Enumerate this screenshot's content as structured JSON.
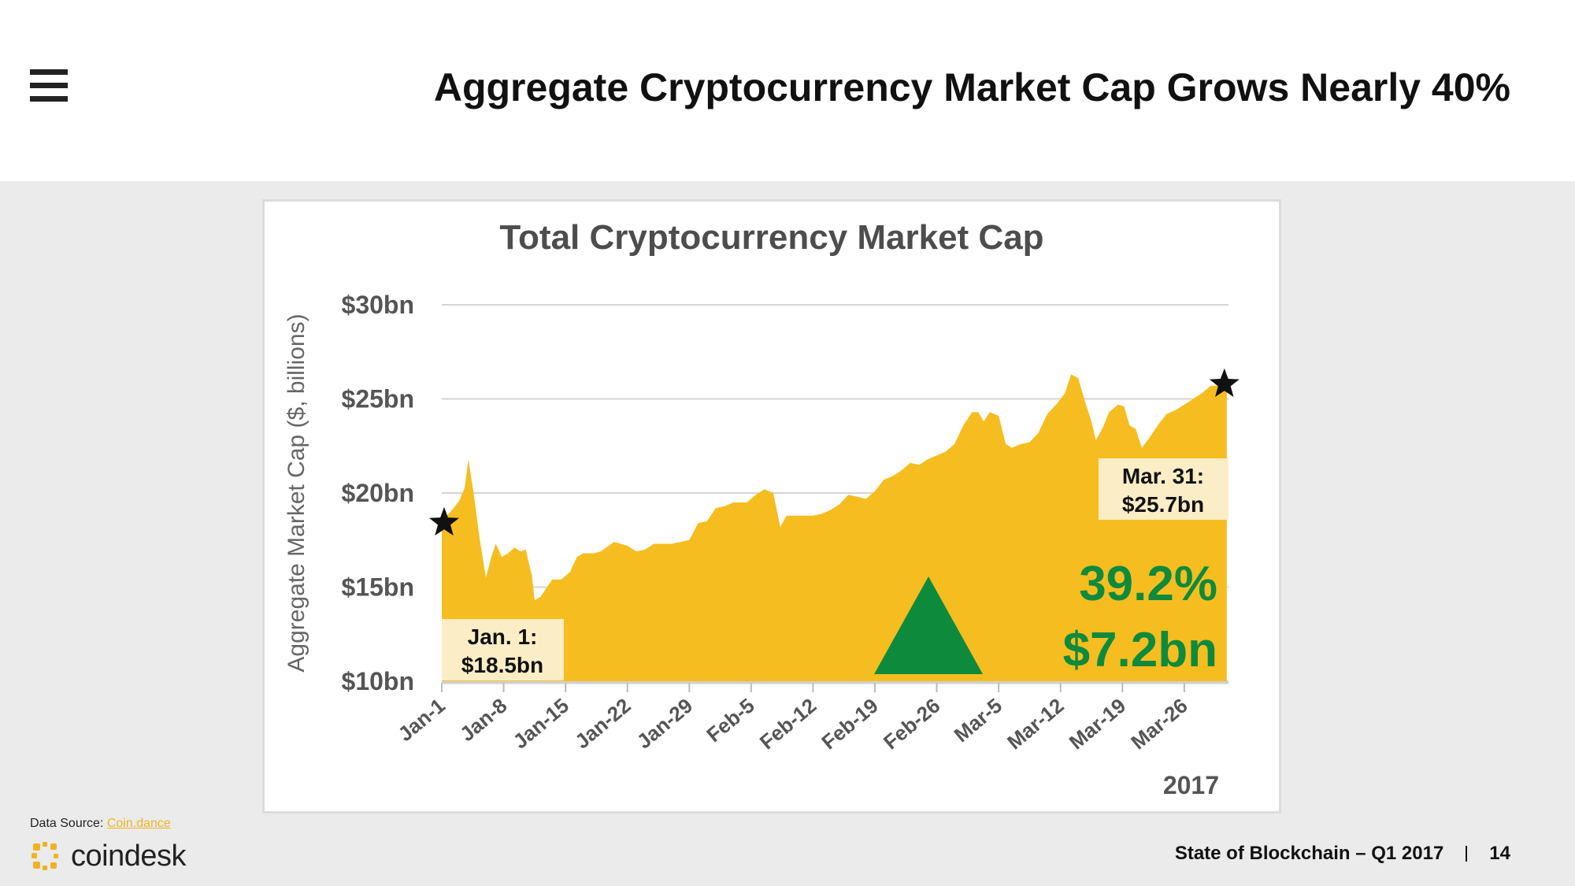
{
  "header": {
    "title": "Aggregate Cryptocurrency Market Cap Grows Nearly 40%"
  },
  "footer": {
    "source_label": "Data Source:",
    "source_link": "Coin.dance",
    "brand": "coindesk",
    "report": "State of Blockchain – Q1 2017",
    "page_number": "14"
  },
  "colors": {
    "area_fill": "#f5bd1f",
    "growth_green": "#0e8a3d",
    "annotation_bg": "#fbedc5",
    "brand_yellow": "#f0b323"
  },
  "icons": {
    "menu": "hamburger-menu-icon",
    "markers": "star-icon",
    "growth": "up-triangle-icon",
    "logo": "coindesk-logo-icon"
  },
  "chart_data": {
    "type": "area",
    "title": "Total Cryptocurrency Market Cap",
    "ylabel": "Aggregate Market Cap ($, billions)",
    "xlabel": "2017",
    "ylim": [
      10,
      30
    ],
    "xlim": [
      0,
      89
    ],
    "grid": true,
    "y_ticks": [
      {
        "value": 10,
        "label": "$10bn"
      },
      {
        "value": 15,
        "label": "$15bn"
      },
      {
        "value": 20,
        "label": "$20bn"
      },
      {
        "value": 25,
        "label": "$25bn"
      },
      {
        "value": 30,
        "label": "$30bn"
      }
    ],
    "x_ticks": [
      {
        "day": 0,
        "label": "Jan-1"
      },
      {
        "day": 7,
        "label": "Jan-8"
      },
      {
        "day": 14,
        "label": "Jan-15"
      },
      {
        "day": 21,
        "label": "Jan-22"
      },
      {
        "day": 28,
        "label": "Jan-29"
      },
      {
        "day": 35,
        "label": "Feb-5"
      },
      {
        "day": 42,
        "label": "Feb-12"
      },
      {
        "day": 49,
        "label": "Feb-19"
      },
      {
        "day": 56,
        "label": "Feb-26"
      },
      {
        "day": 63,
        "label": "Mar-5"
      },
      {
        "day": 70,
        "label": "Mar-12"
      },
      {
        "day": 77,
        "label": "Mar-19"
      },
      {
        "day": 84,
        "label": "Mar-26"
      }
    ],
    "series": [
      {
        "values": [
          [
            0,
            18.5
          ],
          [
            1,
            19.0
          ],
          [
            2,
            19.6
          ],
          [
            2.6,
            20.3
          ],
          [
            3.0,
            21.8
          ],
          [
            3.6,
            20.0
          ],
          [
            4.3,
            17.5
          ],
          [
            5.0,
            15.5
          ],
          [
            5.6,
            16.6
          ],
          [
            6.1,
            17.3
          ],
          [
            6.8,
            16.6
          ],
          [
            7.5,
            16.8
          ],
          [
            8.2,
            17.1
          ],
          [
            8.9,
            16.9
          ],
          [
            9.5,
            17.0
          ],
          [
            10.2,
            15.6
          ],
          [
            10.5,
            14.3
          ],
          [
            11.2,
            14.5
          ],
          [
            12.5,
            15.4
          ],
          [
            13.5,
            15.4
          ],
          [
            14.5,
            15.8
          ],
          [
            15.3,
            16.6
          ],
          [
            16.0,
            16.8
          ],
          [
            17.2,
            16.8
          ],
          [
            18.0,
            16.9
          ],
          [
            19.5,
            17.4
          ],
          [
            21.0,
            17.2
          ],
          [
            22.0,
            16.9
          ],
          [
            23.0,
            17.0
          ],
          [
            24.0,
            17.3
          ],
          [
            26.0,
            17.3
          ],
          [
            28.0,
            17.5
          ],
          [
            29.0,
            18.4
          ],
          [
            30.0,
            18.5
          ],
          [
            31.0,
            19.2
          ],
          [
            32.0,
            19.3
          ],
          [
            33.0,
            19.5
          ],
          [
            34.5,
            19.5
          ],
          [
            35.5,
            19.9
          ],
          [
            36.5,
            20.2
          ],
          [
            37.5,
            20.0
          ],
          [
            38.3,
            18.2
          ],
          [
            39.0,
            18.8
          ],
          [
            40.0,
            18.8
          ],
          [
            42.0,
            18.8
          ],
          [
            43.0,
            18.9
          ],
          [
            44.0,
            19.1
          ],
          [
            45.0,
            19.4
          ],
          [
            46.0,
            19.9
          ],
          [
            47.0,
            19.8
          ],
          [
            48.0,
            19.7
          ],
          [
            49.0,
            20.1
          ],
          [
            50.0,
            20.7
          ],
          [
            51.0,
            20.9
          ],
          [
            52.0,
            21.2
          ],
          [
            53.0,
            21.6
          ],
          [
            54.0,
            21.5
          ],
          [
            55.0,
            21.8
          ],
          [
            56.0,
            22.0
          ],
          [
            57.0,
            22.2
          ],
          [
            58.0,
            22.6
          ],
          [
            59.0,
            23.6
          ],
          [
            60.0,
            24.3
          ],
          [
            60.7,
            24.3
          ],
          [
            61.3,
            23.8
          ],
          [
            62.0,
            24.3
          ],
          [
            63.0,
            24.1
          ],
          [
            63.8,
            22.6
          ],
          [
            64.5,
            22.4
          ],
          [
            65.5,
            22.6
          ],
          [
            66.5,
            22.7
          ],
          [
            67.5,
            23.2
          ],
          [
            68.5,
            24.2
          ],
          [
            69.5,
            24.7
          ],
          [
            70.5,
            25.3
          ],
          [
            71.2,
            26.3
          ],
          [
            72.0,
            26.1
          ],
          [
            72.8,
            24.8
          ],
          [
            73.5,
            23.8
          ],
          [
            74.0,
            22.8
          ],
          [
            74.8,
            23.5
          ],
          [
            75.5,
            24.3
          ],
          [
            76.5,
            24.7
          ],
          [
            77.2,
            24.6
          ],
          [
            77.8,
            23.6
          ],
          [
            78.5,
            23.4
          ],
          [
            79.2,
            22.4
          ],
          [
            80.0,
            22.9
          ],
          [
            81.0,
            23.6
          ],
          [
            82.0,
            24.2
          ],
          [
            83.0,
            24.4
          ],
          [
            84.0,
            24.7
          ],
          [
            85.0,
            25.0
          ],
          [
            86.0,
            25.3
          ],
          [
            87.0,
            25.7
          ],
          [
            88.8,
            25.7
          ]
        ]
      }
    ],
    "annotations": [
      {
        "label_line1": "Jan. 1:",
        "label_line2": "$18.5bn",
        "day": 0,
        "value": 18.5
      },
      {
        "label_line1": "Mar. 31:",
        "label_line2": "$25.7bn",
        "day": 88.8,
        "value": 25.7
      }
    ],
    "growth": {
      "percent": "39.2%",
      "amount": "$7.2bn"
    }
  }
}
